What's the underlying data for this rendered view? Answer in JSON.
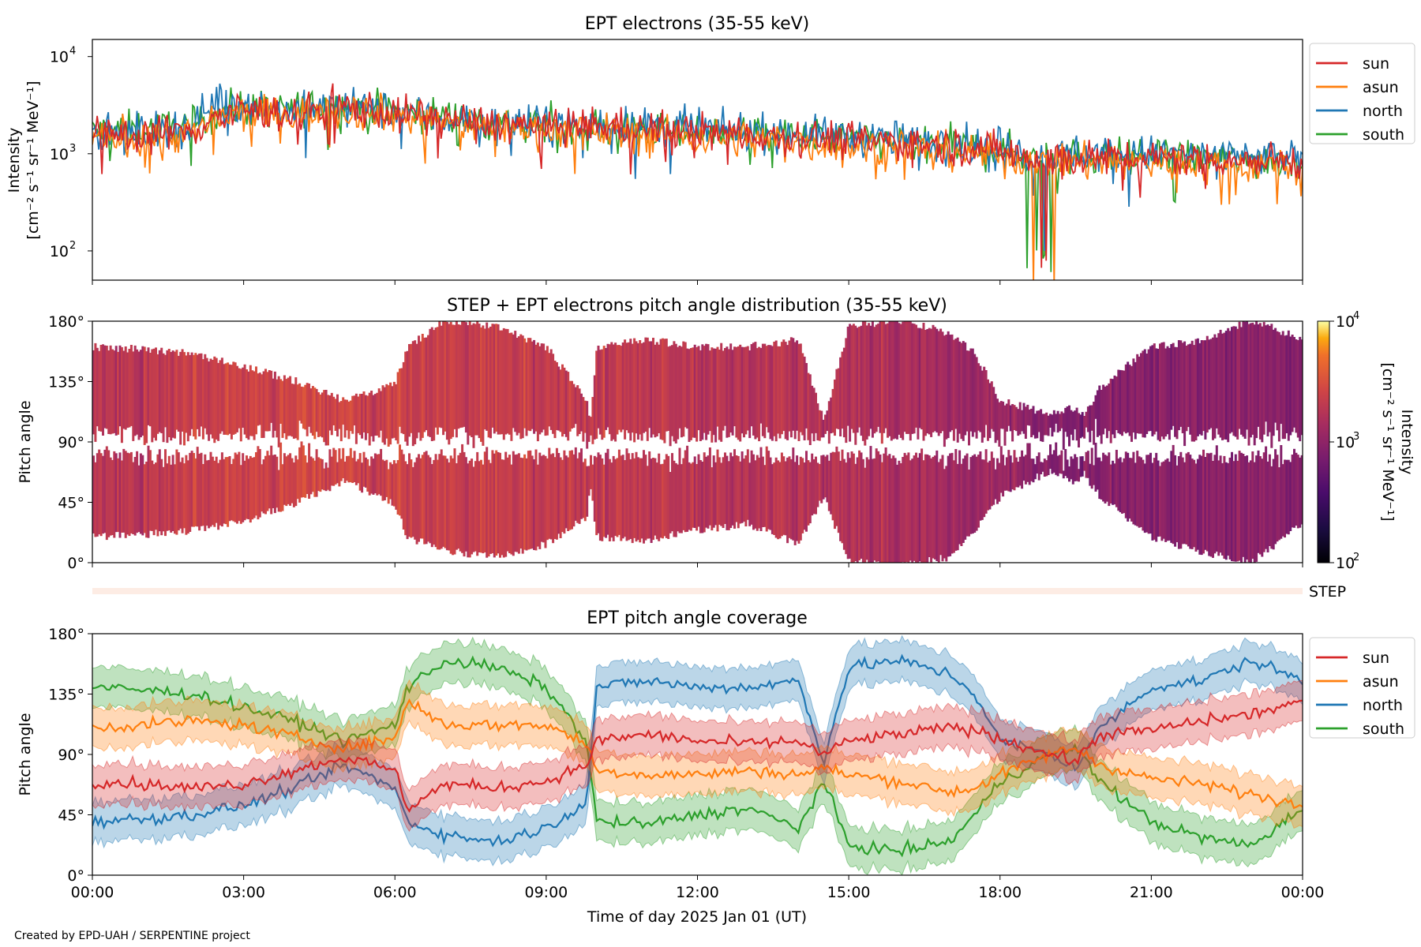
{
  "credit": "Created by EPD-UAH / SERPENTINE project",
  "xlabel": "Time of day 2025 Jan 01 (UT)",
  "x_ticks": [
    "00:00",
    "03:00",
    "06:00",
    "09:00",
    "12:00",
    "15:00",
    "18:00",
    "21:00",
    "00:00"
  ],
  "colors": {
    "sun": "#d62728",
    "asun": "#ff7f0e",
    "north": "#1f77b4",
    "south": "#2ca02c"
  },
  "chart_data": [
    {
      "type": "line",
      "title": "EPT electrons (35-55 keV)",
      "ylabel_line1": "Intensity",
      "ylabel_line2": "[cm⁻² s⁻¹ sr⁻¹ MeV⁻¹]",
      "yscale": "log",
      "ylim": [
        50,
        15000
      ],
      "y_ticks": [
        {
          "value": 100,
          "base": "10",
          "exp": "2"
        },
        {
          "value": 1000,
          "base": "10",
          "exp": "3"
        },
        {
          "value": 10000,
          "base": "10",
          "exp": "4"
        }
      ],
      "x_hours": [
        0,
        1,
        2,
        2.5,
        3,
        4,
        5,
        6,
        7,
        8,
        9,
        10,
        11,
        12,
        13,
        14,
        15,
        16,
        17,
        18,
        18.6,
        19,
        20,
        21,
        22,
        23,
        24
      ],
      "series": [
        {
          "name": "sun",
          "values": [
            1500,
            1600,
            1700,
            2500,
            2800,
            2600,
            3000,
            2600,
            2300,
            2000,
            1900,
            1900,
            1800,
            1700,
            1600,
            1500,
            1400,
            1300,
            1200,
            1100,
            900,
            900,
            900,
            900,
            900,
            850,
            850
          ]
        },
        {
          "name": "asun",
          "values": [
            1400,
            1500,
            1600,
            2300,
            2600,
            2500,
            2800,
            2500,
            2100,
            1900,
            1800,
            1700,
            1600,
            1500,
            1400,
            1300,
            1200,
            1150,
            1050,
            950,
            800,
            800,
            850,
            800,
            800,
            750,
            750
          ]
        },
        {
          "name": "north",
          "values": [
            1600,
            1700,
            1900,
            3800,
            3200,
            2700,
            3100,
            2700,
            2300,
            2100,
            2000,
            2000,
            1900,
            1800,
            1700,
            1600,
            1500,
            1400,
            1300,
            1200,
            1000,
            1000,
            1000,
            1000,
            950,
            900,
            900
          ]
        },
        {
          "name": "south",
          "values": [
            1700,
            1800,
            1900,
            2700,
            3000,
            2800,
            3200,
            2800,
            2400,
            2100,
            2000,
            1900,
            1800,
            1700,
            1600,
            1500,
            1400,
            1300,
            1200,
            1100,
            950,
            900,
            950,
            900,
            900,
            850,
            850
          ]
        }
      ],
      "legend": "upper right, outside axes"
    },
    {
      "type": "heatmap",
      "title": "STEP + EPT electrons pitch angle distribution (35-55 keV)",
      "ylabel": "Pitch angle",
      "ylim": [
        0,
        180
      ],
      "y_ticks": [
        "0°",
        "45°",
        "90°",
        "135°",
        "180°"
      ],
      "colorbar": {
        "label_line1": "Intensity",
        "label_line2": "[cm⁻² s⁻¹ sr⁻¹ MeV⁻¹]",
        "scale": "log",
        "range": [
          100,
          10000
        ],
        "colormap": "inferno",
        "ticks": [
          {
            "value": 100,
            "base": "10",
            "exp": "2"
          },
          {
            "value": 1000,
            "base": "10",
            "exp": "3"
          },
          {
            "value": 10000,
            "base": "10",
            "exp": "4"
          }
        ]
      },
      "x_hours": [
        0,
        3,
        4,
        6,
        9,
        12,
        15,
        18,
        19,
        21,
        24
      ],
      "intensity": [
        1700,
        2600,
        2700,
        2400,
        2100,
        1800,
        1600,
        1200,
        800,
        950,
        900
      ]
    },
    {
      "type": "strip",
      "label": "STEP"
    },
    {
      "type": "line",
      "title": "EPT pitch angle coverage",
      "ylabel": "Pitch angle",
      "ylim": [
        0,
        180
      ],
      "y_ticks": [
        "0°",
        "45°",
        "90°",
        "135°",
        "180°"
      ],
      "x_hours": [
        0,
        1,
        2,
        3,
        4,
        5,
        6,
        6.25,
        7,
        8,
        9,
        9.8,
        10,
        11,
        12,
        13,
        14,
        14.5,
        15,
        16,
        17,
        17.5,
        18,
        19,
        19.5,
        20,
        21,
        22,
        23,
        24
      ],
      "band_halfwidth_deg": 15,
      "series": [
        {
          "name": "sun",
          "values": [
            70,
            68,
            65,
            68,
            78,
            88,
            78,
            50,
            68,
            65,
            70,
            82,
            100,
            105,
            100,
            98,
            100,
            90,
            100,
            105,
            110,
            108,
            102,
            90,
            85,
            105,
            108,
            115,
            120,
            130
          ]
        },
        {
          "name": "asun",
          "values": [
            110,
            112,
            115,
            112,
            103,
            95,
            102,
            130,
            112,
            112,
            112,
            98,
            78,
            75,
            75,
            78,
            75,
            80,
            75,
            70,
            62,
            65,
            75,
            90,
            95,
            82,
            72,
            68,
            60,
            52
          ]
        },
        {
          "name": "north",
          "values": [
            40,
            42,
            45,
            52,
            65,
            82,
            65,
            40,
            30,
            25,
            35,
            55,
            140,
            145,
            140,
            140,
            145,
            85,
            155,
            160,
            150,
            135,
            100,
            90,
            80,
            110,
            140,
            145,
            160,
            145
          ]
        },
        {
          "name": "south",
          "values": [
            140,
            138,
            135,
            125,
            115,
            100,
            112,
            140,
            160,
            155,
            140,
            100,
            40,
            38,
            45,
            50,
            35,
            70,
            22,
            18,
            25,
            45,
            70,
            90,
            95,
            70,
            40,
            28,
            22,
            50
          ]
        }
      ],
      "legend": "upper right, outside axes"
    }
  ]
}
